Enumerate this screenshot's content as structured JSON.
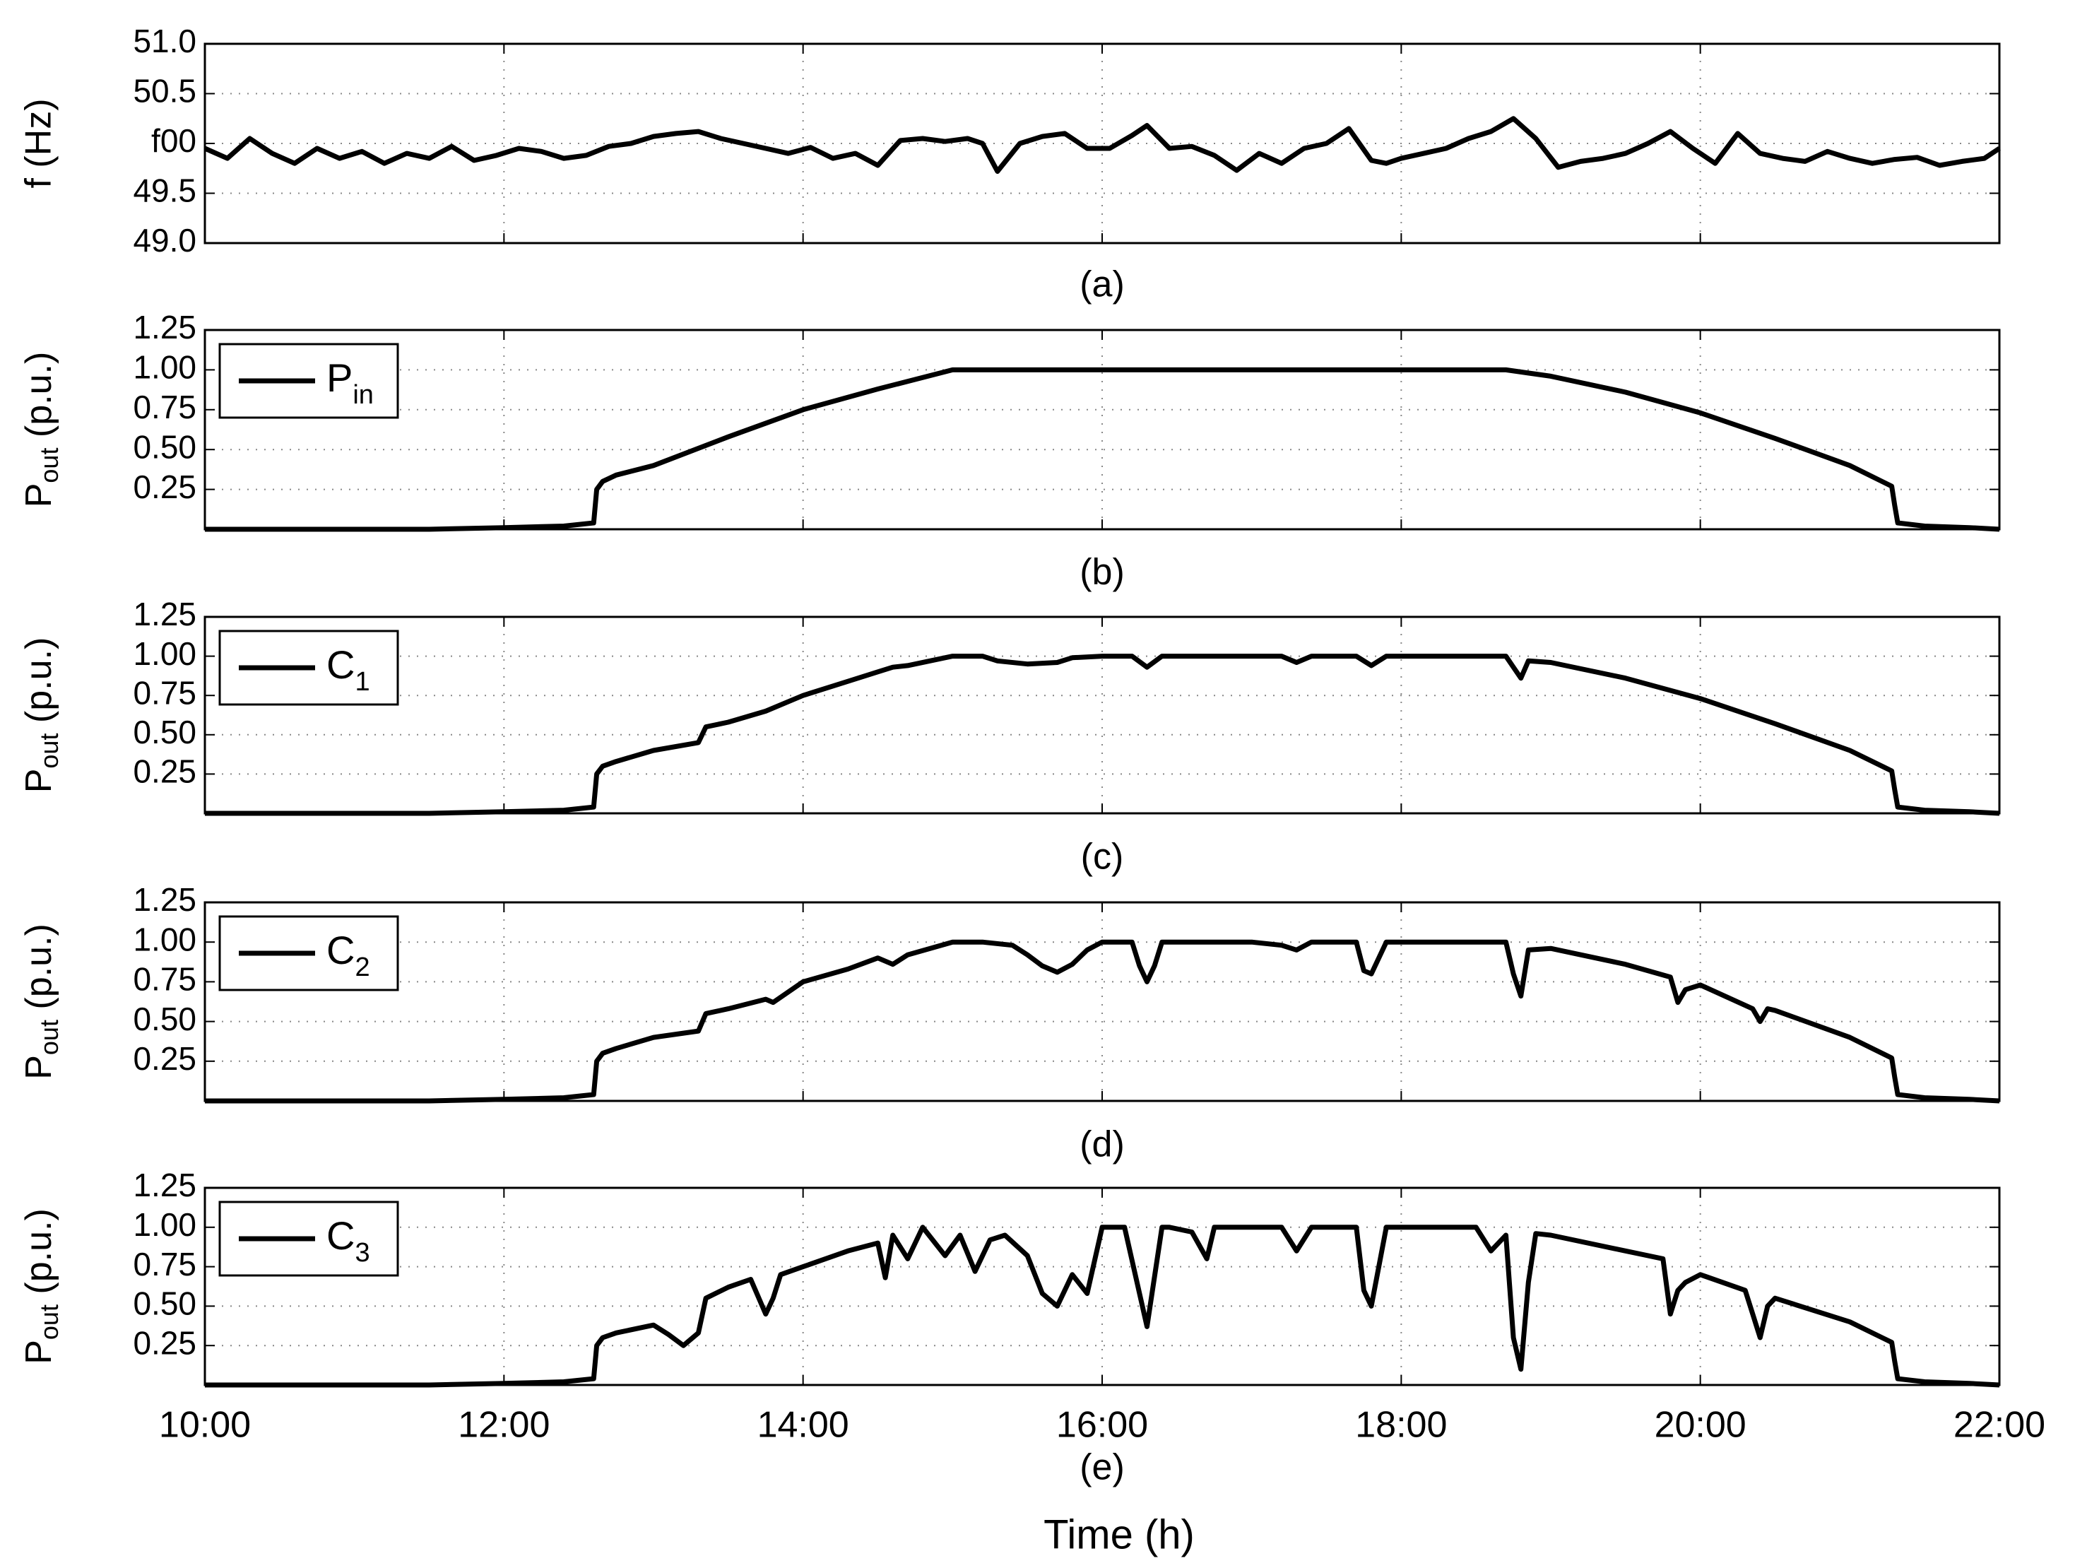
{
  "figure": {
    "xlabel": "Time (h)",
    "x_ticks": [
      "10:00",
      "12:00",
      "14:00",
      "16:00",
      "18:00",
      "20:00",
      "22:00"
    ]
  },
  "chart_data": [
    {
      "type": "line",
      "caption": "(a)",
      "ylabel": "f (Hz)",
      "y_tick_labels": [
        "49.0",
        "49.5",
        "f00",
        "50.5",
        "51.0"
      ],
      "ylim": [
        49.0,
        51.0
      ],
      "xlim": [
        10,
        22
      ],
      "grid": true,
      "series": [
        {
          "color": "#000000",
          "x": [
            10.0,
            10.15,
            10.3,
            10.45,
            10.6,
            10.75,
            10.9,
            11.05,
            11.2,
            11.35,
            11.5,
            11.65,
            11.8,
            11.95,
            12.1,
            12.25,
            12.4,
            12.55,
            12.7,
            12.85,
            13.0,
            13.15,
            13.3,
            13.45,
            13.6,
            13.75,
            13.9,
            14.05,
            14.2,
            14.35,
            14.5,
            14.65,
            14.8,
            14.95,
            15.1,
            15.2,
            15.3,
            15.45,
            15.6,
            15.75,
            15.9,
            16.05,
            16.2,
            16.3,
            16.45,
            16.6,
            16.75,
            16.9,
            17.05,
            17.2,
            17.35,
            17.5,
            17.65,
            17.8,
            17.9,
            18.0,
            18.15,
            18.3,
            18.45,
            18.6,
            18.75,
            18.9,
            19.05,
            19.2,
            19.35,
            19.5,
            19.65,
            19.8,
            19.95,
            20.1,
            20.25,
            20.4,
            20.55,
            20.7,
            20.85,
            21.0,
            21.15,
            21.3,
            21.45,
            21.6,
            21.75,
            21.9,
            22.0
          ],
          "y": [
            49.95,
            49.85,
            50.05,
            49.9,
            49.8,
            49.95,
            49.85,
            49.92,
            49.8,
            49.9,
            49.85,
            49.97,
            49.83,
            49.88,
            49.95,
            49.92,
            49.85,
            49.88,
            49.97,
            50.0,
            50.07,
            50.1,
            50.12,
            50.05,
            50.0,
            49.95,
            49.9,
            49.96,
            49.85,
            49.9,
            49.78,
            50.03,
            50.05,
            50.02,
            50.05,
            50.0,
            49.72,
            50.0,
            50.07,
            50.1,
            49.95,
            49.95,
            50.08,
            50.18,
            49.95,
            49.97,
            49.88,
            49.73,
            49.9,
            49.8,
            49.95,
            50.0,
            50.15,
            49.83,
            49.8,
            49.85,
            49.9,
            49.95,
            50.05,
            50.12,
            50.25,
            50.05,
            49.76,
            49.82,
            49.85,
            49.9,
            50.0,
            50.12,
            49.95,
            49.8,
            50.1,
            49.9,
            49.85,
            49.82,
            49.92,
            49.85,
            49.8,
            49.84,
            49.86,
            49.78,
            49.82,
            49.85,
            49.95
          ]
        }
      ]
    },
    {
      "type": "line",
      "caption": "(b)",
      "ylabel_main": "P",
      "ylabel_sub": "out",
      "ylabel_rest": " (p.u.)",
      "y_tick_labels": [
        "0.25",
        "0.50",
        "0.75",
        "1.00",
        "1.25"
      ],
      "ylim": [
        0,
        1.25
      ],
      "xlim": [
        10,
        22
      ],
      "grid": true,
      "legend": {
        "main": "P",
        "sub": "in",
        "placement": "top-left"
      },
      "series": [
        {
          "color": "#000000",
          "x": [
            10.0,
            11.5,
            12.0,
            12.4,
            12.6,
            12.62,
            12.66,
            12.75,
            13.0,
            13.5,
            14.0,
            14.5,
            15.0,
            16.0,
            17.0,
            18.0,
            18.7,
            19.0,
            19.5,
            20.0,
            20.5,
            21.0,
            21.28,
            21.3,
            21.32,
            21.5,
            21.8,
            22.0
          ],
          "y": [
            0.0,
            0.0,
            0.01,
            0.02,
            0.04,
            0.25,
            0.3,
            0.34,
            0.4,
            0.58,
            0.75,
            0.88,
            1.0,
            1.0,
            1.0,
            1.0,
            1.0,
            0.96,
            0.86,
            0.73,
            0.57,
            0.4,
            0.27,
            0.15,
            0.04,
            0.02,
            0.01,
            0.0
          ]
        }
      ]
    },
    {
      "type": "line",
      "caption": "(c)",
      "ylabel_main": "P",
      "ylabel_sub": "out",
      "ylabel_rest": " (p.u.)",
      "y_tick_labels": [
        "0.25",
        "0.50",
        "0.75",
        "1.00",
        "1.25"
      ],
      "ylim": [
        0,
        1.25
      ],
      "xlim": [
        10,
        22
      ],
      "grid": true,
      "legend": {
        "main": "C",
        "sub": "1",
        "placement": "top-left"
      },
      "series": [
        {
          "color": "#000000",
          "x": [
            10.0,
            11.5,
            12.0,
            12.4,
            12.6,
            12.62,
            12.66,
            12.75,
            13.0,
            13.3,
            13.35,
            13.5,
            13.75,
            14.0,
            14.3,
            14.5,
            14.6,
            14.7,
            15.0,
            15.2,
            15.3,
            15.5,
            15.7,
            15.8,
            16.0,
            16.2,
            16.3,
            16.4,
            16.6,
            17.2,
            17.3,
            17.4,
            17.7,
            17.8,
            17.9,
            18.7,
            18.75,
            18.8,
            18.85,
            19.0,
            19.5,
            20.0,
            20.5,
            21.0,
            21.28,
            21.3,
            21.32,
            21.5,
            21.8,
            22.0
          ],
          "y": [
            0.0,
            0.0,
            0.01,
            0.02,
            0.04,
            0.25,
            0.3,
            0.33,
            0.4,
            0.45,
            0.55,
            0.58,
            0.65,
            0.75,
            0.84,
            0.9,
            0.93,
            0.94,
            1.0,
            1.0,
            0.97,
            0.95,
            0.96,
            0.99,
            1.0,
            1.0,
            0.93,
            1.0,
            1.0,
            1.0,
            0.96,
            1.0,
            1.0,
            0.94,
            1.0,
            1.0,
            0.93,
            0.86,
            0.97,
            0.96,
            0.86,
            0.73,
            0.57,
            0.4,
            0.27,
            0.15,
            0.04,
            0.02,
            0.01,
            0.0
          ]
        }
      ]
    },
    {
      "type": "line",
      "caption": "(d)",
      "ylabel_main": "P",
      "ylabel_sub": "out",
      "ylabel_rest": " (p.u.)",
      "y_tick_labels": [
        "0.25",
        "0.50",
        "0.75",
        "1.00",
        "1.25"
      ],
      "ylim": [
        0,
        1.25
      ],
      "xlim": [
        10,
        22
      ],
      "grid": true,
      "legend": {
        "main": "C",
        "sub": "2",
        "placement": "top-left"
      },
      "series": [
        {
          "color": "#000000",
          "x": [
            10.0,
            11.5,
            12.0,
            12.4,
            12.6,
            12.62,
            12.66,
            12.75,
            13.0,
            13.3,
            13.35,
            13.5,
            13.75,
            13.8,
            14.0,
            14.3,
            14.5,
            14.6,
            14.7,
            15.0,
            15.2,
            15.4,
            15.5,
            15.6,
            15.7,
            15.8,
            15.9,
            16.0,
            16.2,
            16.25,
            16.3,
            16.35,
            16.4,
            17.0,
            17.2,
            17.3,
            17.4,
            17.7,
            17.75,
            17.8,
            17.9,
            18.7,
            18.75,
            18.8,
            18.85,
            19.0,
            19.5,
            19.8,
            19.85,
            19.9,
            20.0,
            20.35,
            20.4,
            20.45,
            20.5,
            21.0,
            21.28,
            21.3,
            21.32,
            21.5,
            21.8,
            22.0
          ],
          "y": [
            0.0,
            0.0,
            0.01,
            0.02,
            0.04,
            0.25,
            0.3,
            0.33,
            0.4,
            0.44,
            0.55,
            0.58,
            0.64,
            0.62,
            0.75,
            0.83,
            0.9,
            0.86,
            0.92,
            1.0,
            1.0,
            0.98,
            0.92,
            0.85,
            0.81,
            0.86,
            0.95,
            1.0,
            1.0,
            0.85,
            0.75,
            0.85,
            1.0,
            1.0,
            0.98,
            0.95,
            1.0,
            1.0,
            0.82,
            0.8,
            1.0,
            1.0,
            0.8,
            0.66,
            0.95,
            0.96,
            0.86,
            0.78,
            0.62,
            0.7,
            0.73,
            0.58,
            0.5,
            0.58,
            0.57,
            0.4,
            0.27,
            0.15,
            0.04,
            0.02,
            0.01,
            0.0
          ]
        }
      ]
    },
    {
      "type": "line",
      "caption": "(e)",
      "ylabel_main": "P",
      "ylabel_sub": "out",
      "ylabel_rest": " (p.u.)",
      "y_tick_labels": [
        "0.25",
        "0.50",
        "0.75",
        "1.00",
        "1.25"
      ],
      "ylim": [
        0,
        1.25
      ],
      "xlim": [
        10,
        22
      ],
      "grid": true,
      "legend": {
        "main": "C",
        "sub": "3",
        "placement": "top-left"
      },
      "series": [
        {
          "color": "#000000",
          "x": [
            10.0,
            11.5,
            12.0,
            12.4,
            12.6,
            12.62,
            12.66,
            12.75,
            13.0,
            13.1,
            13.2,
            13.3,
            13.35,
            13.5,
            13.65,
            13.75,
            13.8,
            13.85,
            14.0,
            14.3,
            14.5,
            14.55,
            14.6,
            14.7,
            14.8,
            14.95,
            15.05,
            15.15,
            15.25,
            15.35,
            15.5,
            15.6,
            15.7,
            15.8,
            15.9,
            16.0,
            16.15,
            16.3,
            16.4,
            16.45,
            16.6,
            16.7,
            16.75,
            17.2,
            17.3,
            17.4,
            17.7,
            17.75,
            17.8,
            17.9,
            18.5,
            18.6,
            18.7,
            18.75,
            18.8,
            18.85,
            18.9,
            19.0,
            19.5,
            19.75,
            19.8,
            19.85,
            19.9,
            20.0,
            20.3,
            20.35,
            20.4,
            20.45,
            20.5,
            21.0,
            21.28,
            21.3,
            21.32,
            21.5,
            21.8,
            22.0
          ],
          "y": [
            0.0,
            0.0,
            0.01,
            0.02,
            0.04,
            0.25,
            0.3,
            0.33,
            0.38,
            0.32,
            0.25,
            0.33,
            0.55,
            0.62,
            0.67,
            0.45,
            0.55,
            0.7,
            0.75,
            0.85,
            0.9,
            0.68,
            0.95,
            0.8,
            1.0,
            0.82,
            0.95,
            0.72,
            0.92,
            0.95,
            0.82,
            0.58,
            0.5,
            0.7,
            0.58,
            1.0,
            1.0,
            0.37,
            1.0,
            1.0,
            0.97,
            0.8,
            1.0,
            1.0,
            0.85,
            1.0,
            1.0,
            0.6,
            0.5,
            1.0,
            1.0,
            0.85,
            0.95,
            0.3,
            0.1,
            0.65,
            0.96,
            0.95,
            0.85,
            0.8,
            0.45,
            0.6,
            0.65,
            0.7,
            0.6,
            0.45,
            0.3,
            0.5,
            0.55,
            0.4,
            0.27,
            0.15,
            0.04,
            0.02,
            0.01,
            0.0
          ]
        }
      ]
    }
  ]
}
